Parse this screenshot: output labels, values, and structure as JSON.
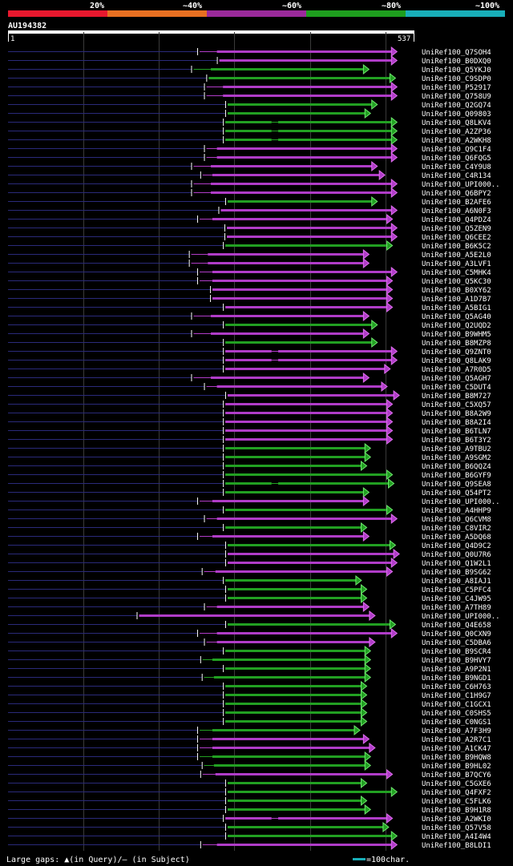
{
  "legend": {
    "segments": [
      {
        "label": "20%",
        "color": "#e8182e"
      },
      {
        "label": "~40%",
        "color": "#e87022"
      },
      {
        "label": "~60%",
        "color": "#9b2a9b"
      },
      {
        "label": "~80%",
        "color": "#1e9e1e"
      },
      {
        "label": "~100%",
        "color": "#18aeb8"
      }
    ]
  },
  "query": {
    "id": "AU194382",
    "start_label": "1",
    "end_label": "537"
  },
  "colors": {
    "magenta": "#b03cc8",
    "green": "#22a022",
    "navy": "#2a2a8a",
    "grid": "#444444"
  },
  "hits": [
    {
      "name": "UniRef100_Q7SOH4",
      "color": "magenta",
      "start": 250,
      "end": 514,
      "gap": [
        250,
        276
      ],
      "marks": []
    },
    {
      "name": "UniRef100_B0DXQ0",
      "color": "magenta",
      "start": 276,
      "end": 514,
      "gap": null,
      "marks": []
    },
    {
      "name": "UniRef100_Q5YKJ0",
      "color": "green",
      "start": 242,
      "end": 477,
      "gap": [
        242,
        268
      ],
      "marks": []
    },
    {
      "name": "UniRef100_C9SDP0",
      "color": "green",
      "start": 262,
      "end": 512,
      "gap": null,
      "marks": []
    },
    {
      "name": "UniRef100_P52917",
      "color": "magenta",
      "start": 259,
      "end": 514,
      "gap": [
        259,
        284
      ],
      "marks": []
    },
    {
      "name": "UniRef100_Q758U9",
      "color": "magenta",
      "start": 259,
      "end": 514,
      "gap": [
        259,
        284
      ],
      "marks": []
    },
    {
      "name": "UniRef100_Q2GQ74",
      "color": "green",
      "start": 287,
      "end": 488,
      "gap": null,
      "marks": []
    },
    {
      "name": "UniRef100_Q09803",
      "color": "green",
      "start": 287,
      "end": 479,
      "gap": null,
      "marks": []
    },
    {
      "name": "UniRef100_Q8LKV4",
      "color": "green",
      "start": 284,
      "end": 514,
      "gap": [
        345,
        357
      ],
      "marks": []
    },
    {
      "name": "UniRef100_A2ZP36",
      "color": "green",
      "start": 284,
      "end": 514,
      "gap": [
        345,
        357
      ],
      "marks": []
    },
    {
      "name": "UniRef100_A2WKH8",
      "color": "green",
      "start": 284,
      "end": 514,
      "gap": [
        345,
        357
      ],
      "marks": []
    },
    {
      "name": "UniRef100_Q9C1F4",
      "color": "magenta",
      "start": 259,
      "end": 514,
      "gap": [
        259,
        276
      ],
      "marks": []
    },
    {
      "name": "UniRef100_Q6FQG5",
      "color": "magenta",
      "start": 259,
      "end": 514,
      "gap": [
        259,
        276
      ],
      "marks": []
    },
    {
      "name": "UniRef100_C4Y9U8",
      "color": "magenta",
      "start": 242,
      "end": 488,
      "gap": [
        242,
        268
      ],
      "marks": []
    },
    {
      "name": "UniRef100_C4R134",
      "color": "magenta",
      "start": 254,
      "end": 498,
      "gap": [
        254,
        270
      ],
      "marks": []
    },
    {
      "name": "UniRef100_UPI000..",
      "color": "magenta",
      "start": 242,
      "end": 514,
      "gap": [
        242,
        268
      ],
      "marks": []
    },
    {
      "name": "UniRef100_Q6BPY2",
      "color": "magenta",
      "start": 242,
      "end": 514,
      "gap": [
        242,
        268
      ],
      "marks": []
    },
    {
      "name": "UniRef100_B2AFE6",
      "color": "green",
      "start": 287,
      "end": 488,
      "gap": null,
      "marks": []
    },
    {
      "name": "UniRef100_A6N0F3",
      "color": "magenta",
      "start": 278,
      "end": 514,
      "gap": null,
      "marks": []
    },
    {
      "name": "UniRef100_Q4PDZ4",
      "color": "magenta",
      "start": 250,
      "end": 508,
      "gap": [
        250,
        270
      ],
      "marks": []
    },
    {
      "name": "UniRef100_Q5ZEN9",
      "color": "magenta",
      "start": 286,
      "end": 514,
      "gap": null,
      "marks": []
    },
    {
      "name": "UniRef100_Q6CEE2",
      "color": "magenta",
      "start": 286,
      "end": 514,
      "gap": null,
      "marks": []
    },
    {
      "name": "UniRef100_B6K5C2",
      "color": "green",
      "start": 284,
      "end": 508,
      "gap": null,
      "marks": []
    },
    {
      "name": "UniRef100_A5E2L0",
      "color": "magenta",
      "start": 239,
      "end": 477,
      "gap": [
        239,
        264
      ],
      "marks": []
    },
    {
      "name": "UniRef100_A3LVF1",
      "color": "magenta",
      "start": 239,
      "end": 477,
      "gap": [
        239,
        264
      ],
      "marks": []
    },
    {
      "name": "UniRef100_C5MHK4",
      "color": "magenta",
      "start": 250,
      "end": 514,
      "gap": [
        250,
        270
      ],
      "marks": []
    },
    {
      "name": "UniRef100_Q5KC30",
      "color": "magenta",
      "start": 250,
      "end": 508,
      "gap": [
        250,
        270
      ],
      "marks": []
    },
    {
      "name": "UniRef100_B0XY62",
      "color": "magenta",
      "start": 267,
      "end": 508,
      "gap": null,
      "marks": []
    },
    {
      "name": "UniRef100_A1D7B7",
      "color": "magenta",
      "start": 267,
      "end": 508,
      "gap": null,
      "marks": []
    },
    {
      "name": "UniRef100_A5BIG1",
      "color": "magenta",
      "start": 284,
      "end": 508,
      "gap": null,
      "marks": []
    },
    {
      "name": "UniRef100_Q5AG40",
      "color": "magenta",
      "start": 242,
      "end": 477,
      "gap": [
        242,
        268
      ],
      "marks": []
    },
    {
      "name": "UniRef100_Q2UQD2",
      "color": "green",
      "start": 284,
      "end": 488,
      "gap": null,
      "marks": []
    },
    {
      "name": "UniRef100_B9WHM5",
      "color": "magenta",
      "start": 242,
      "end": 477,
      "gap": [
        242,
        268
      ],
      "marks": []
    },
    {
      "name": "UniRef100_B8MZP8",
      "color": "green",
      "start": 284,
      "end": 488,
      "gap": null,
      "marks": []
    },
    {
      "name": "UniRef100_Q9ZNT0",
      "color": "magenta",
      "start": 284,
      "end": 514,
      "gap": [
        345,
        357
      ],
      "marks": []
    },
    {
      "name": "UniRef100_Q8LAK9",
      "color": "magenta",
      "start": 284,
      "end": 514,
      "gap": [
        345,
        357
      ],
      "marks": []
    },
    {
      "name": "UniRef100_A7R0D5",
      "color": "magenta",
      "start": 284,
      "end": 505,
      "gap": null,
      "marks": []
    },
    {
      "name": "UniRef100_Q5AGH7",
      "color": "magenta",
      "start": 242,
      "end": 477,
      "gap": [
        242,
        268
      ],
      "marks": []
    },
    {
      "name": "UniRef100_C5DUT4",
      "color": "magenta",
      "start": 259,
      "end": 501,
      "gap": [
        259,
        276
      ],
      "marks": []
    },
    {
      "name": "UniRef100_B8M727",
      "color": "magenta",
      "start": 287,
      "end": 517,
      "gap": null,
      "marks": []
    },
    {
      "name": "UniRef100_C5XQ57",
      "color": "magenta",
      "start": 284,
      "end": 508,
      "gap": null,
      "marks": []
    },
    {
      "name": "UniRef100_B8A2W9",
      "color": "magenta",
      "start": 284,
      "end": 508,
      "gap": null,
      "marks": []
    },
    {
      "name": "UniRef100_B8A2I4",
      "color": "magenta",
      "start": 284,
      "end": 508,
      "gap": null,
      "marks": []
    },
    {
      "name": "UniRef100_B6TLN7",
      "color": "magenta",
      "start": 284,
      "end": 508,
      "gap": null,
      "marks": []
    },
    {
      "name": "UniRef100_B6T3Y2",
      "color": "magenta",
      "start": 284,
      "end": 508,
      "gap": null,
      "marks": []
    },
    {
      "name": "UniRef100_A9TBU2",
      "color": "green",
      "start": 284,
      "end": 479,
      "gap": null,
      "marks": []
    },
    {
      "name": "UniRef100_A9SGM2",
      "color": "green",
      "start": 284,
      "end": 479,
      "gap": null,
      "marks": []
    },
    {
      "name": "UniRef100_B6QQZ4",
      "color": "green",
      "start": 284,
      "end": 474,
      "gap": null,
      "marks": []
    },
    {
      "name": "UniRef100_B6GYF9",
      "color": "green",
      "start": 284,
      "end": 508,
      "gap": null,
      "marks": []
    },
    {
      "name": "UniRef100_Q9SEA8",
      "color": "green",
      "start": 284,
      "end": 510,
      "gap": [
        345,
        357
      ],
      "marks": []
    },
    {
      "name": "UniRef100_Q54PT2",
      "color": "green",
      "start": 284,
      "end": 477,
      "gap": null,
      "marks": []
    },
    {
      "name": "UniRef100_UPI000..",
      "color": "magenta",
      "start": 250,
      "end": 477,
      "gap": [
        250,
        270
      ],
      "marks": []
    },
    {
      "name": "UniRef100_A4HHP9",
      "color": "green",
      "start": 284,
      "end": 508,
      "gap": null,
      "marks": []
    },
    {
      "name": "UniRef100_Q6CVM8",
      "color": "magenta",
      "start": 259,
      "end": 514,
      "gap": [
        259,
        276
      ],
      "marks": []
    },
    {
      "name": "UniRef100_C8VIR2",
      "color": "green",
      "start": 284,
      "end": 474,
      "gap": null,
      "marks": []
    },
    {
      "name": "UniRef100_A5DQ68",
      "color": "magenta",
      "start": 250,
      "end": 477,
      "gap": [
        250,
        270
      ],
      "marks": []
    },
    {
      "name": "UniRef100_Q4D9C2",
      "color": "green",
      "start": 287,
      "end": 512,
      "gap": null,
      "marks": []
    },
    {
      "name": "UniRef100_Q0U7R6",
      "color": "magenta",
      "start": 287,
      "end": 517,
      "gap": null,
      "marks": []
    },
    {
      "name": "UniRef100_Q1W2L1",
      "color": "magenta",
      "start": 287,
      "end": 514,
      "gap": null,
      "marks": []
    },
    {
      "name": "UniRef100_B9SG62",
      "color": "magenta",
      "start": 256,
      "end": 508,
      "gap": [
        256,
        274
      ],
      "marks": []
    },
    {
      "name": "UniRef100_A8IAJ1",
      "color": "green",
      "start": 284,
      "end": 467,
      "gap": null,
      "marks": []
    },
    {
      "name": "UniRef100_C5PFC4",
      "color": "green",
      "start": 287,
      "end": 474,
      "gap": null,
      "marks": []
    },
    {
      "name": "UniRef100_C4JW95",
      "color": "green",
      "start": 287,
      "end": 474,
      "gap": null,
      "marks": []
    },
    {
      "name": "UniRef100_A7TH89",
      "color": "magenta",
      "start": 259,
      "end": 477,
      "gap": [
        259,
        276
      ],
      "marks": []
    },
    {
      "name": "UniRef100_UPI000..",
      "color": "magenta",
      "start": 170,
      "end": 485,
      "gap": null,
      "marks": []
    },
    {
      "name": "UniRef100_Q4E658",
      "color": "green",
      "start": 287,
      "end": 512,
      "gap": null,
      "marks": []
    },
    {
      "name": "UniRef100_Q0CXN9",
      "color": "magenta",
      "start": 250,
      "end": 514,
      "gap": [
        250,
        276
      ],
      "marks": []
    },
    {
      "name": "UniRef100_C5DBA6",
      "color": "magenta",
      "start": 259,
      "end": 485,
      "gap": [
        259,
        276
      ],
      "marks": []
    },
    {
      "name": "UniRef100_B9SCR4",
      "color": "green",
      "start": 284,
      "end": 479,
      "gap": null,
      "marks": []
    },
    {
      "name": "UniRef100_B9HVY7",
      "color": "green",
      "start": 254,
      "end": 479,
      "gap": [
        254,
        270
      ],
      "marks": []
    },
    {
      "name": "UniRef100_A9P2N1",
      "color": "green",
      "start": 284,
      "end": 479,
      "gap": null,
      "marks": []
    },
    {
      "name": "UniRef100_B9NGD1",
      "color": "green",
      "start": 256,
      "end": 479,
      "gap": [
        256,
        272
      ],
      "marks": []
    },
    {
      "name": "UniRef100_C6H763",
      "color": "green",
      "start": 284,
      "end": 474,
      "gap": null,
      "marks": []
    },
    {
      "name": "UniRef100_C1H9G7",
      "color": "green",
      "start": 284,
      "end": 474,
      "gap": null,
      "marks": []
    },
    {
      "name": "UniRef100_C1GCX1",
      "color": "green",
      "start": 284,
      "end": 474,
      "gap": null,
      "marks": []
    },
    {
      "name": "UniRef100_C0SHS5",
      "color": "green",
      "start": 284,
      "end": 474,
      "gap": null,
      "marks": []
    },
    {
      "name": "UniRef100_C0NGS1",
      "color": "green",
      "start": 284,
      "end": 474,
      "gap": null,
      "marks": []
    },
    {
      "name": "UniRef100_A7F3H9",
      "color": "green",
      "start": 250,
      "end": 465,
      "gap": [
        250,
        270
      ],
      "marks": []
    },
    {
      "name": "UniRef100_A2R7C1",
      "color": "magenta",
      "start": 250,
      "end": 477,
      "gap": [
        250,
        270
      ],
      "marks": []
    },
    {
      "name": "UniRef100_A1CK47",
      "color": "magenta",
      "start": 250,
      "end": 485,
      "gap": [
        250,
        270
      ],
      "marks": []
    },
    {
      "name": "UniRef100_B9HQW8",
      "color": "green",
      "start": 250,
      "end": 479,
      "gap": [
        250,
        270
      ],
      "marks": []
    },
    {
      "name": "UniRef100_B9HL02",
      "color": "green",
      "start": 256,
      "end": 479,
      "gap": [
        256,
        272
      ],
      "marks": []
    },
    {
      "name": "UniRef100_B7QCY6",
      "color": "magenta",
      "start": 254,
      "end": 508,
      "gap": [
        254,
        274
      ],
      "marks": []
    },
    {
      "name": "UniRef100_C5GXE6",
      "color": "green",
      "start": 287,
      "end": 474,
      "gap": null,
      "marks": []
    },
    {
      "name": "UniRef100_Q4FXF2",
      "color": "green",
      "start": 287,
      "end": 514,
      "gap": null,
      "marks": []
    },
    {
      "name": "UniRef100_C5FLK6",
      "color": "green",
      "start": 287,
      "end": 474,
      "gap": null,
      "marks": []
    },
    {
      "name": "UniRef100_B9H1R8",
      "color": "green",
      "start": 287,
      "end": 479,
      "gap": null,
      "marks": []
    },
    {
      "name": "UniRef100_A2WKI0",
      "color": "magenta",
      "start": 284,
      "end": 508,
      "gap": [
        345,
        357
      ],
      "marks": []
    },
    {
      "name": "UniRef100_Q57V58",
      "color": "green",
      "start": 287,
      "end": 503,
      "gap": null,
      "marks": []
    },
    {
      "name": "UniRef100_A4I4W4",
      "color": "green",
      "start": 287,
      "end": 514,
      "gap": null,
      "marks": []
    },
    {
      "name": "UniRef100_B8LDI1",
      "color": "magenta",
      "start": 254,
      "end": 514,
      "gap": [
        254,
        276
      ],
      "marks": []
    }
  ],
  "footer": {
    "gaps_label": "Large gaps: ▲(in Query)/– (in Subject)",
    "scale_label": "=100char."
  }
}
